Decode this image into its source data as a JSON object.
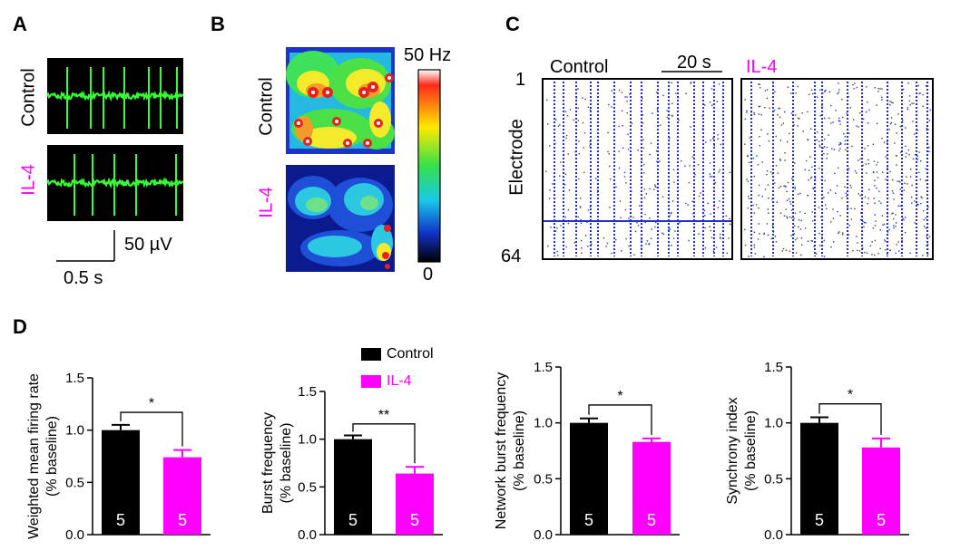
{
  "panels": {
    "A": {
      "letter": "A",
      "control_label": "Control",
      "il4_label": "IL-4",
      "scale_y": "50 µV",
      "scale_x": "0.5 s"
    },
    "B": {
      "letter": "B",
      "control_label": "Control",
      "il4_label": "IL-4",
      "colorbar_max": "50 Hz",
      "colorbar_min": "0"
    },
    "C": {
      "letter": "C",
      "control_label": "Control",
      "il4_label": "IL-4",
      "scale_label": "20 s",
      "ylabel": "Electrode",
      "y_top": "1",
      "y_bottom": "64"
    },
    "D": {
      "letter": "D"
    }
  },
  "legend": {
    "control": "Control",
    "il4": "IL-4"
  },
  "colors": {
    "control": "#000000",
    "il4": "#ff00ff",
    "trace": "#33ff33",
    "raster": "#1f2fd6"
  },
  "chart_data": [
    {
      "type": "bar",
      "categories": [
        "Control",
        "IL-4"
      ],
      "values": [
        1.0,
        0.74
      ],
      "errors": [
        0.05,
        0.07
      ],
      "n": [
        "5",
        "5"
      ],
      "ylabel": "Weighted mean firing rate\n(% baseline)",
      "ylim": [
        0,
        1.5
      ],
      "yticks": [
        "0.0",
        "0.5",
        "1.0",
        "1.5"
      ],
      "significance": "*"
    },
    {
      "type": "bar",
      "categories": [
        "Control",
        "IL-4"
      ],
      "values": [
        1.0,
        0.64
      ],
      "errors": [
        0.04,
        0.07
      ],
      "n": [
        "5",
        "5"
      ],
      "ylabel": "Burst frequency\n(% baseline)",
      "ylim": [
        0,
        1.5
      ],
      "yticks": [
        "0.0",
        "0.5",
        "1.0",
        "1.5"
      ],
      "significance": "**"
    },
    {
      "type": "bar",
      "categories": [
        "Control",
        "IL-4"
      ],
      "values": [
        1.0,
        0.83
      ],
      "errors": [
        0.04,
        0.03
      ],
      "n": [
        "5",
        "5"
      ],
      "ylabel": "Network burst frequency\n(% baseline)",
      "ylim": [
        0,
        1.5
      ],
      "yticks": [
        "0.0",
        "0.5",
        "1.0",
        "1.5"
      ],
      "significance": "*"
    },
    {
      "type": "bar",
      "categories": [
        "Control",
        "IL-4"
      ],
      "values": [
        1.0,
        0.78
      ],
      "errors": [
        0.05,
        0.08
      ],
      "n": [
        "5",
        "5"
      ],
      "ylabel": "Synchrony index\n(% baseline)",
      "ylim": [
        0,
        1.5
      ],
      "yticks": [
        "0.0",
        "0.5",
        "1.0",
        "1.5"
      ],
      "significance": "*"
    }
  ]
}
